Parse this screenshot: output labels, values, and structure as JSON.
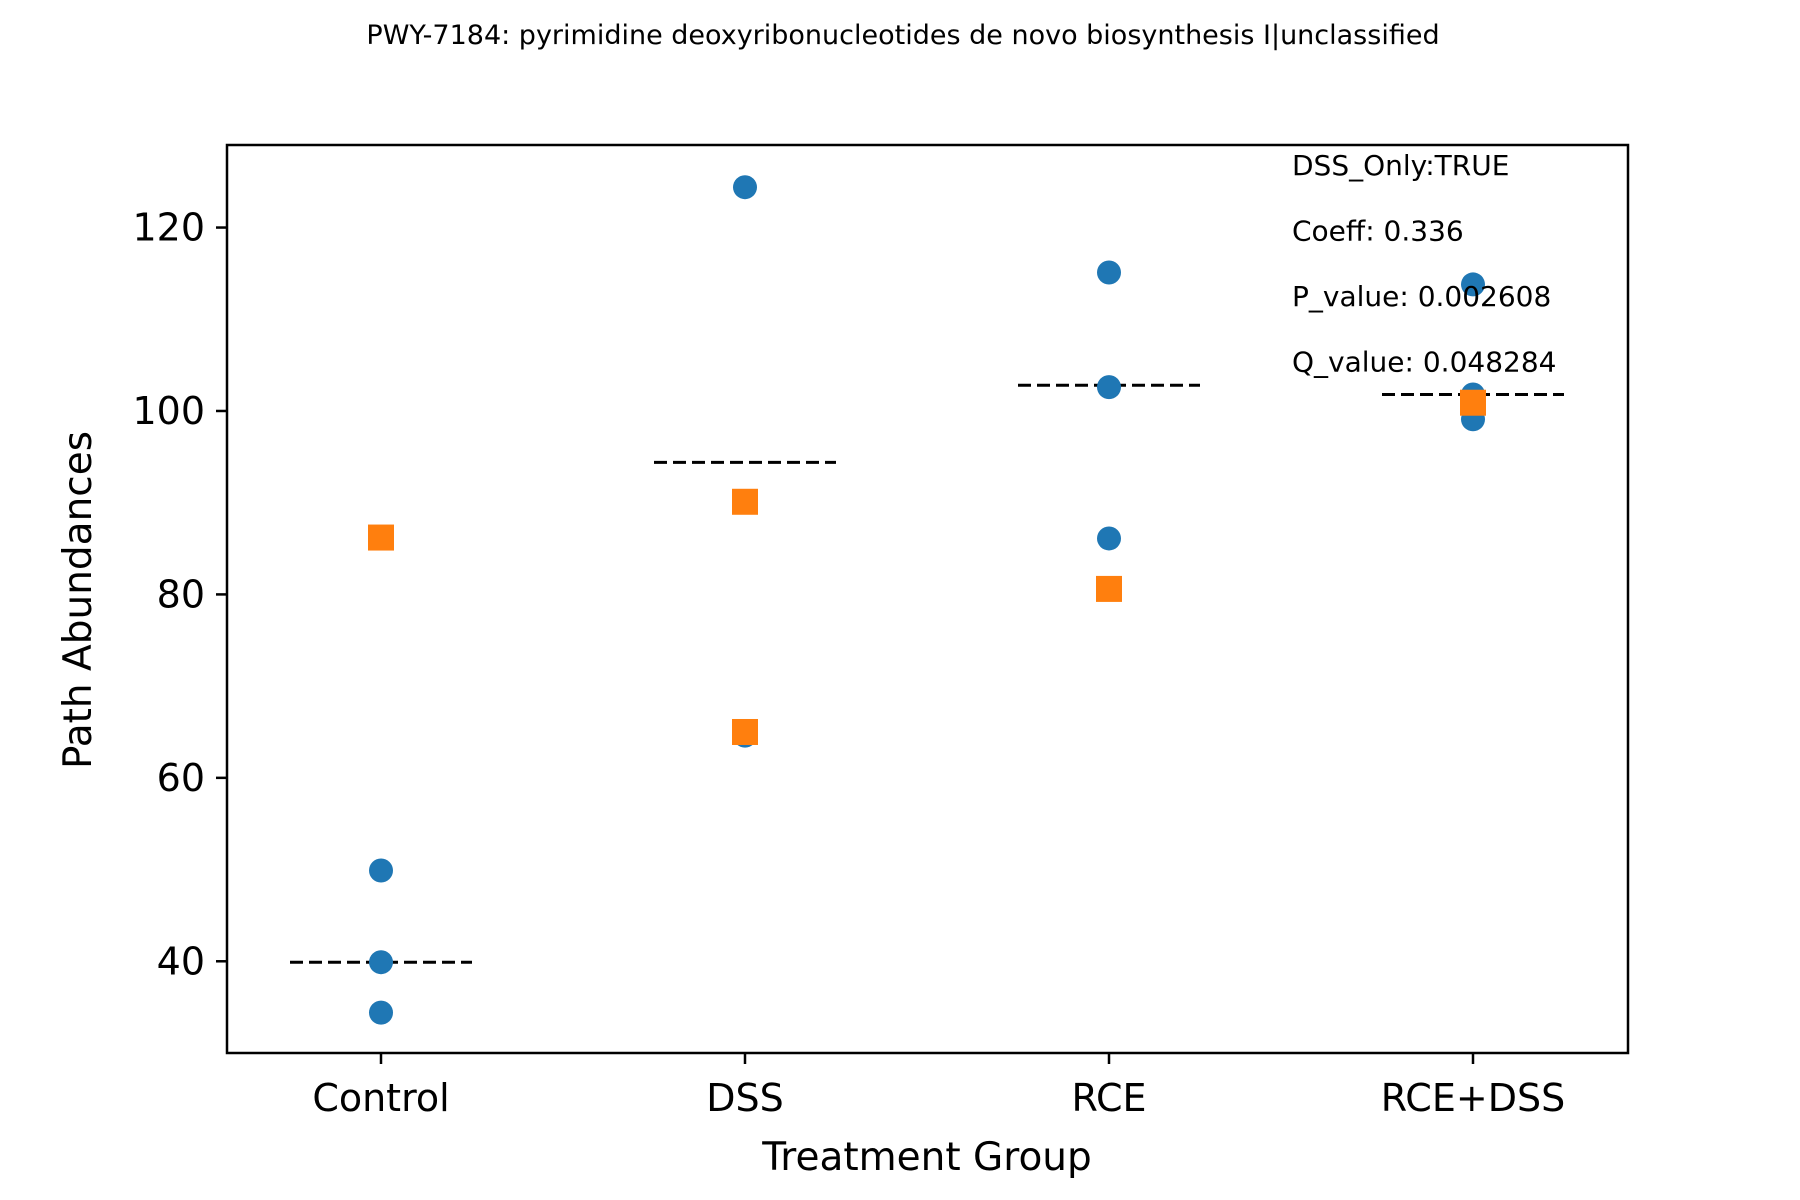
{
  "title": "PWY-7184: pyrimidine deoxyribonucleotides de novo biosynthesis I|unclassified",
  "chart_data": {
    "type": "scatter",
    "title": "PWY-7184: pyrimidine deoxyribonucleotides de novo biosynthesis I|unclassified",
    "xlabel": "Treatment Group",
    "ylabel": "Path Abundances",
    "categories": [
      "Control",
      "DSS",
      "RCE",
      "RCE+DSS"
    ],
    "ylim": [
      30,
      129
    ],
    "yticks": [
      "40",
      "60",
      "80",
      "100",
      "120"
    ],
    "ytick_values": [
      40,
      60,
      80,
      100,
      120
    ],
    "grid": false,
    "series": [
      {
        "marker": "circle",
        "color": "#1f77b4",
        "points": [
          {
            "category": "Control",
            "y": 49.9
          },
          {
            "category": "Control",
            "y": 39.9
          },
          {
            "category": "Control",
            "y": 34.4
          },
          {
            "category": "DSS",
            "y": 124.4
          },
          {
            "category": "DSS",
            "y": 64.6
          },
          {
            "category": "RCE",
            "y": 115.1
          },
          {
            "category": "RCE",
            "y": 102.6
          },
          {
            "category": "RCE",
            "y": 86.1
          },
          {
            "category": "RCE+DSS",
            "y": 113.8
          },
          {
            "category": "RCE+DSS",
            "y": 101.8
          },
          {
            "category": "RCE+DSS",
            "y": 99.1
          }
        ]
      },
      {
        "marker": "square",
        "color": "#ff7f0e",
        "points": [
          {
            "category": "Control",
            "y": 86.2
          },
          {
            "category": "DSS",
            "y": 90.1
          },
          {
            "category": "DSS",
            "y": 65.0
          },
          {
            "category": "RCE",
            "y": 80.6
          },
          {
            "category": "RCE+DSS",
            "y": 100.9
          }
        ]
      }
    ],
    "medians": [
      {
        "category": "Control",
        "y": 39.9
      },
      {
        "category": "DSS",
        "y": 94.4
      },
      {
        "category": "RCE",
        "y": 102.8
      },
      {
        "category": "RCE+DSS",
        "y": 101.8
      }
    ],
    "median_style": "dashed black",
    "annotations": [
      "DSS_Only:TRUE",
      "Coeff: 0.336",
      "P_value: 0.002608",
      "Q_value: 0.048284"
    ]
  }
}
